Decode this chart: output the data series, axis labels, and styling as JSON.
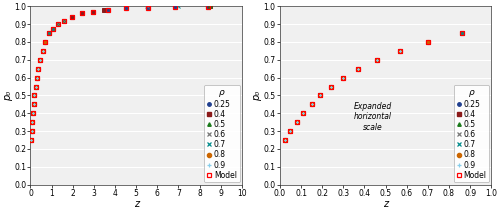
{
  "ylabel": "p₀",
  "xlabel": "z",
  "xlim1": [
    0,
    10
  ],
  "xlim2": [
    0,
    1
  ],
  "ylim": [
    0,
    1
  ],
  "yticks": [
    0,
    0.1,
    0.2,
    0.3,
    0.4,
    0.5,
    0.6,
    0.7,
    0.8,
    0.9,
    1.0
  ],
  "xticks1": [
    0,
    1,
    2,
    3,
    4,
    5,
    6,
    7,
    8,
    9,
    10
  ],
  "xticks2": [
    0,
    0.1,
    0.2,
    0.3,
    0.4,
    0.5,
    0.6,
    0.7,
    0.8,
    0.9,
    1.0
  ],
  "annotation": "Expanded\nhorizontal\nscale",
  "series": [
    {
      "rho": 0.25,
      "label": "0.25",
      "marker": "o",
      "color": "#1F3F8F",
      "ms": 2.5,
      "filled": true,
      "z": [
        0.025,
        0.05,
        0.08,
        0.11,
        0.15,
        0.19,
        0.24,
        0.3,
        0.37,
        0.46,
        0.57,
        0.7,
        0.86,
        1.06,
        1.3,
        1.6,
        1.96,
        2.42,
        2.97,
        3.66,
        4.5,
        5.55,
        6.83,
        8.41
      ],
      "p0e": [
        0.25,
        0.3,
        0.35,
        0.4,
        0.45,
        0.5,
        0.55,
        0.6,
        0.65,
        0.7,
        0.75,
        0.8,
        0.85,
        0.875,
        0.9,
        0.92,
        0.94,
        0.96,
        0.97,
        0.98,
        0.99,
        0.993,
        0.996,
        0.998
      ]
    },
    {
      "rho": 0.4,
      "label": "0.4",
      "marker": "s",
      "color": "#8B1A1A",
      "ms": 3.0,
      "filled": true,
      "z": [
        0.025,
        0.05,
        0.08,
        0.11,
        0.15,
        0.19,
        0.24,
        0.3,
        0.37,
        0.46,
        0.57,
        0.7,
        0.86,
        1.06,
        1.3,
        1.6,
        1.96,
        2.42,
        2.97,
        3.5,
        8.5
      ],
      "p0e": [
        0.25,
        0.3,
        0.35,
        0.4,
        0.45,
        0.5,
        0.55,
        0.6,
        0.65,
        0.7,
        0.75,
        0.8,
        0.85,
        0.875,
        0.9,
        0.92,
        0.94,
        0.96,
        0.97,
        0.98,
        0.999
      ]
    },
    {
      "rho": 0.5,
      "label": "0.5",
      "marker": "^",
      "color": "#1A7A1A",
      "ms": 2.5,
      "filled": true,
      "z": [
        0.025,
        0.05,
        0.08,
        0.11,
        0.15,
        0.19,
        0.24,
        0.3,
        0.37,
        0.46,
        0.57,
        0.7,
        0.86,
        1.06,
        1.3,
        1.6,
        8.5
      ],
      "p0e": [
        0.25,
        0.3,
        0.35,
        0.4,
        0.45,
        0.5,
        0.55,
        0.6,
        0.65,
        0.7,
        0.75,
        0.8,
        0.85,
        0.875,
        0.9,
        0.92,
        0.999
      ]
    },
    {
      "rho": 0.6,
      "label": "0.6",
      "marker": "x",
      "color": "#777777",
      "ms": 3.0,
      "filled": false,
      "z": [
        0.025,
        0.05,
        0.08,
        0.11,
        0.15,
        0.19,
        0.24,
        0.3,
        0.37,
        0.46,
        0.57,
        0.7,
        0.86,
        1.06,
        1.3,
        1.6,
        5.5
      ],
      "p0e": [
        0.25,
        0.3,
        0.35,
        0.4,
        0.45,
        0.5,
        0.55,
        0.6,
        0.65,
        0.7,
        0.75,
        0.8,
        0.85,
        0.875,
        0.9,
        0.92,
        0.999
      ]
    },
    {
      "rho": 0.7,
      "label": "0.7",
      "marker": "x",
      "color": "#008B8B",
      "ms": 3.0,
      "filled": false,
      "z": [
        0.025,
        0.05,
        0.08,
        0.11,
        0.15,
        0.19,
        0.24,
        0.3,
        0.37,
        0.46,
        0.57,
        0.7,
        0.86,
        1.06,
        7.0
      ],
      "p0e": [
        0.25,
        0.3,
        0.35,
        0.4,
        0.45,
        0.5,
        0.55,
        0.6,
        0.65,
        0.7,
        0.75,
        0.8,
        0.85,
        0.875,
        0.999
      ]
    },
    {
      "rho": 0.8,
      "label": "0.8",
      "marker": "o",
      "color": "#CC6600",
      "ms": 3.0,
      "filled": true,
      "z": [
        0.025,
        0.05,
        0.08,
        0.11,
        0.15,
        0.19,
        0.24,
        0.3,
        0.37,
        0.46,
        0.57,
        0.7
      ],
      "p0e": [
        0.25,
        0.3,
        0.35,
        0.4,
        0.45,
        0.5,
        0.55,
        0.6,
        0.65,
        0.7,
        0.75,
        0.8
      ]
    },
    {
      "rho": 0.9,
      "label": "0.9",
      "marker": "+",
      "color": "#87CEEB",
      "ms": 3.0,
      "filled": false,
      "z": [
        0.025,
        0.05,
        0.08,
        0.11,
        0.15,
        0.19,
        0.24,
        0.3,
        0.37,
        0.46,
        0.57
      ],
      "p0e": [
        0.25,
        0.3,
        0.35,
        0.4,
        0.45,
        0.5,
        0.55,
        0.6,
        0.65,
        0.7,
        0.75
      ]
    }
  ],
  "model_z": [
    0.025,
    0.05,
    0.08,
    0.11,
    0.15,
    0.19,
    0.24,
    0.3,
    0.37,
    0.46,
    0.57,
    0.7,
    0.86,
    1.06,
    1.3,
    1.6,
    1.96,
    2.42,
    2.97,
    3.66,
    4.5,
    5.55,
    6.83,
    8.41
  ],
  "model_p0e": [
    0.25,
    0.3,
    0.35,
    0.4,
    0.45,
    0.5,
    0.55,
    0.6,
    0.65,
    0.7,
    0.75,
    0.8,
    0.85,
    0.875,
    0.9,
    0.92,
    0.94,
    0.96,
    0.97,
    0.98,
    0.99,
    0.993,
    0.996,
    0.998
  ],
  "bg_color": "#f0f0f0",
  "legend_fontsize": 5.5,
  "axis_fontsize": 7,
  "tick_fontsize": 5.5
}
